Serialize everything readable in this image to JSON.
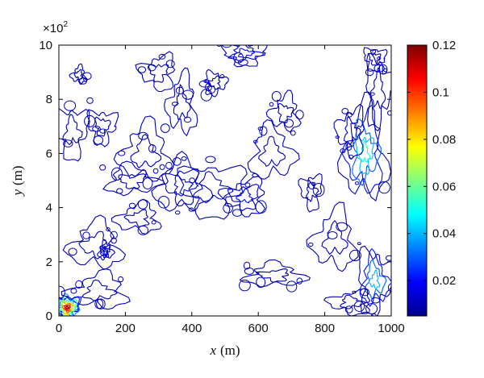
{
  "chart_data": {
    "type": "contour",
    "title": "",
    "xlabel": {
      "var": "x",
      "unit": "(m)"
    },
    "ylabel": {
      "var": "y",
      "unit": "(m)"
    },
    "xlim": [
      0,
      1000
    ],
    "ylim": [
      0,
      10
    ],
    "y_multiplier": {
      "base": "×10",
      "exp": "2"
    },
    "x_ticks": [
      0,
      200,
      400,
      600,
      800,
      1000
    ],
    "y_ticks": [
      0,
      2,
      4,
      6,
      8,
      10
    ],
    "x_tick_labels": [
      "0",
      "200",
      "400",
      "600",
      "800",
      "1000"
    ],
    "y_tick_labels": [
      "0",
      "2",
      "4",
      "6",
      "8",
      "10"
    ],
    "grid": false,
    "colorbar": {
      "range": [
        0.005,
        0.12
      ],
      "ticks": [
        0.02,
        0.04,
        0.06,
        0.08,
        0.1,
        0.12
      ],
      "tick_labels": [
        "0.02",
        "0.04",
        "0.06",
        "0.08",
        "0.1",
        "0.12"
      ],
      "colormap": [
        "#00008f",
        "#0000ff",
        "#007fff",
        "#00ffff",
        "#7fff7f",
        "#ffff00",
        "#ff7f00",
        "#ff0000",
        "#7f0000"
      ]
    },
    "patches": [
      {
        "x": 40,
        "y": 6.8,
        "rx": 45,
        "ry": 0.9,
        "level": 0.01
      },
      {
        "x": 60,
        "y": 8.9,
        "rx": 20,
        "ry": 0.3,
        "level": 0.008
      },
      {
        "x": 130,
        "y": 7.0,
        "rx": 40,
        "ry": 0.6,
        "level": 0.008
      },
      {
        "x": 260,
        "y": 6.0,
        "rx": 70,
        "ry": 1.0,
        "level": 0.012
      },
      {
        "x": 220,
        "y": 5.0,
        "rx": 70,
        "ry": 0.5,
        "level": 0.012
      },
      {
        "x": 370,
        "y": 4.8,
        "rx": 70,
        "ry": 0.9,
        "level": 0.014
      },
      {
        "x": 460,
        "y": 4.7,
        "rx": 90,
        "ry": 0.9,
        "level": 0.012
      },
      {
        "x": 560,
        "y": 4.4,
        "rx": 60,
        "ry": 0.6,
        "level": 0.02
      },
      {
        "x": 640,
        "y": 6.0,
        "rx": 60,
        "ry": 0.9,
        "level": 0.012
      },
      {
        "x": 680,
        "y": 7.5,
        "rx": 40,
        "ry": 0.6,
        "level": 0.008
      },
      {
        "x": 370,
        "y": 7.8,
        "rx": 40,
        "ry": 1.0,
        "level": 0.01
      },
      {
        "x": 300,
        "y": 9.0,
        "rx": 50,
        "ry": 0.6,
        "level": 0.008
      },
      {
        "x": 560,
        "y": 9.7,
        "rx": 60,
        "ry": 0.4,
        "level": 0.02
      },
      {
        "x": 470,
        "y": 8.6,
        "rx": 30,
        "ry": 0.4,
        "level": 0.008
      },
      {
        "x": 110,
        "y": 2.6,
        "rx": 70,
        "ry": 0.8,
        "level": 0.012
      },
      {
        "x": 140,
        "y": 2.4,
        "rx": 20,
        "ry": 0.3,
        "level": 0.02
      },
      {
        "x": 240,
        "y": 3.6,
        "rx": 60,
        "ry": 0.5,
        "level": 0.008
      },
      {
        "x": 120,
        "y": 0.9,
        "rx": 80,
        "ry": 0.6,
        "level": 0.01
      },
      {
        "x": 25,
        "y": 0.3,
        "rx": 35,
        "ry": 0.45,
        "level": 0.12
      },
      {
        "x": 830,
        "y": 2.8,
        "rx": 60,
        "ry": 1.0,
        "level": 0.012
      },
      {
        "x": 650,
        "y": 1.5,
        "rx": 80,
        "ry": 0.4,
        "level": 0.008
      },
      {
        "x": 920,
        "y": 6.0,
        "rx": 60,
        "ry": 1.6,
        "level": 0.05
      },
      {
        "x": 960,
        "y": 8.3,
        "rx": 35,
        "ry": 1.2,
        "level": 0.01
      },
      {
        "x": 880,
        "y": 6.8,
        "rx": 40,
        "ry": 0.8,
        "level": 0.012
      },
      {
        "x": 950,
        "y": 1.3,
        "rx": 50,
        "ry": 1.1,
        "level": 0.04
      },
      {
        "x": 880,
        "y": 0.5,
        "rx": 60,
        "ry": 0.4,
        "level": 0.01
      },
      {
        "x": 760,
        "y": 4.6,
        "rx": 30,
        "ry": 0.6,
        "level": 0.008
      },
      {
        "x": 950,
        "y": 9.5,
        "rx": 30,
        "ry": 0.4,
        "level": 0.008
      }
    ]
  }
}
